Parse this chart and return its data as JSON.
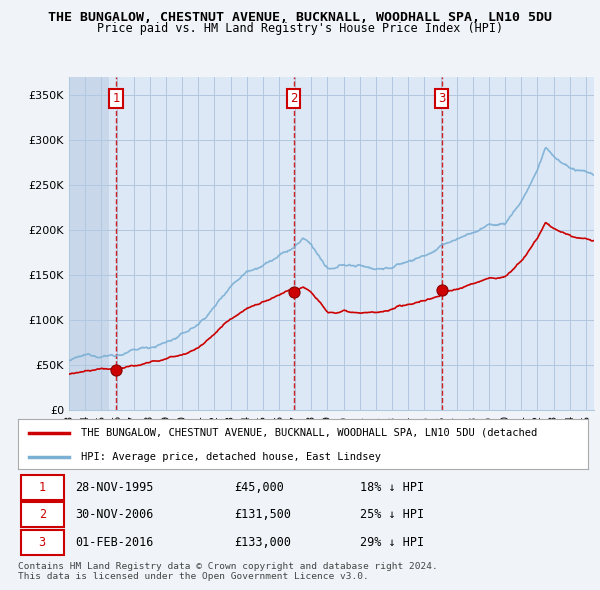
{
  "title": "THE BUNGALOW, CHESTNUT AVENUE, BUCKNALL, WOODHALL SPA, LN10 5DU",
  "subtitle": "Price paid vs. HM Land Registry's House Price Index (HPI)",
  "ytick_values": [
    0,
    50000,
    100000,
    150000,
    200000,
    250000,
    300000,
    350000
  ],
  "ytick_labels": [
    "£0",
    "£50K",
    "£100K",
    "£150K",
    "£200K",
    "£250K",
    "£300K",
    "£350K"
  ],
  "ylim": [
    0,
    370000
  ],
  "xlim_start": 1993.0,
  "xlim_end": 2025.5,
  "price_paid_color": "#cc0000",
  "hpi_color": "#7bafd4",
  "background_color": "#f0f4f8",
  "plot_bg_color": "#dce8f5",
  "grid_color": "#b0c8e0",
  "hatch_color": "#c8d8ea",
  "transactions": [
    {
      "label": "1",
      "date": 1995.91,
      "price": 45000
    },
    {
      "label": "2",
      "date": 2006.91,
      "price": 131500
    },
    {
      "label": "3",
      "date": 2016.08,
      "price": 133000
    }
  ],
  "transaction_info": [
    {
      "num": "1",
      "date": "28-NOV-1995",
      "price": "£45,000",
      "hpi": "18% ↓ HPI"
    },
    {
      "num": "2",
      "date": "30-NOV-2006",
      "price": "£131,500",
      "hpi": "25% ↓ HPI"
    },
    {
      "num": "3",
      "date": "01-FEB-2016",
      "price": "£133,000",
      "hpi": "29% ↓ HPI"
    }
  ],
  "legend_entries": [
    "THE BUNGALOW, CHESTNUT AVENUE, BUCKNALL, WOODHALL SPA, LN10 5DU (detached",
    "HPI: Average price, detached house, East Lindsey"
  ],
  "footer": "Contains HM Land Registry data © Crown copyright and database right 2024.\nThis data is licensed under the Open Government Licence v3.0.",
  "vline_color": "#cc0000"
}
